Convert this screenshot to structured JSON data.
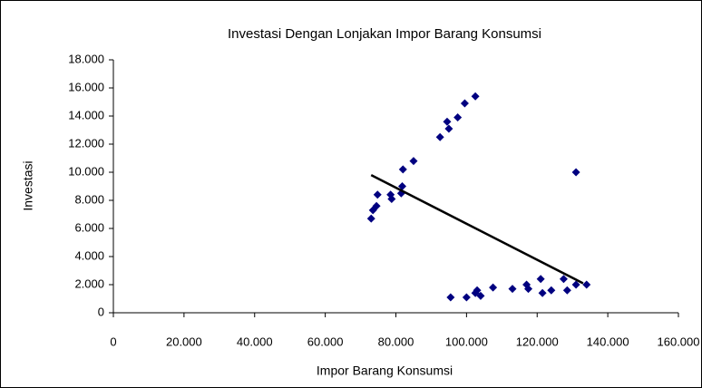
{
  "chart_data": {
    "type": "scatter",
    "title": "Investasi Dengan Lonjakan Impor Barang Konsumsi",
    "x_label": "Impor Barang Konsumsi",
    "y_label": "Investasi",
    "color": "#000080",
    "x": [
      73000,
      73500,
      74500,
      74800,
      78500,
      78800,
      81500,
      81800,
      82000,
      85000,
      92500,
      94500,
      95000,
      97500,
      99500,
      102500,
      95500,
      100000,
      102500,
      103000,
      104000,
      107500,
      113000,
      117000,
      117500,
      121000,
      121500,
      124000,
      127500,
      128500,
      131000,
      134000,
      131000
    ],
    "values": [
      6700,
      7300,
      7600,
      8400,
      8400,
      8100,
      8500,
      9000,
      10200,
      10800,
      12500,
      13600,
      13100,
      13900,
      14900,
      15400,
      1100,
      1100,
      1400,
      1600,
      1200,
      1800,
      1700,
      2000,
      1700,
      2400,
      1400,
      1600,
      2400,
      1600,
      2000,
      2000,
      10000
    ],
    "trendline": {
      "x": [
        73000,
        133000
      ],
      "values": [
        9800,
        2100
      ],
      "color": "#000000"
    },
    "xlim": [
      0,
      160000
    ],
    "xticks": [
      0,
      {
        "value": 20000,
        "label": "20.000"
      },
      {
        "value": 40000,
        "label": "40.000"
      },
      {
        "value": 60000,
        "label": "60.000"
      },
      {
        "value": 80000,
        "label": "80.000"
      },
      {
        "value": 100000,
        "label": "100.000"
      },
      {
        "value": 120000,
        "label": "120.000"
      },
      {
        "value": 140000,
        "label": "140.000"
      },
      {
        "value": 160000,
        "label": "160.000"
      }
    ],
    "ylim": [
      0,
      18000
    ],
    "yticks": [
      0,
      {
        "value": 2000,
        "label": "2.000"
      },
      {
        "value": 4000,
        "label": "4.000"
      },
      {
        "value": 6000,
        "label": "6.000"
      },
      {
        "value": 8000,
        "label": "8.000"
      },
      {
        "value": 10000,
        "label": "10.000"
      },
      {
        "value": 12000,
        "label": "12.000"
      },
      {
        "value": 14000,
        "label": "14.000"
      },
      {
        "value": 16000,
        "label": "16.000"
      },
      {
        "value": 18000,
        "label": "18.000"
      }
    ],
    "grid": false
  }
}
